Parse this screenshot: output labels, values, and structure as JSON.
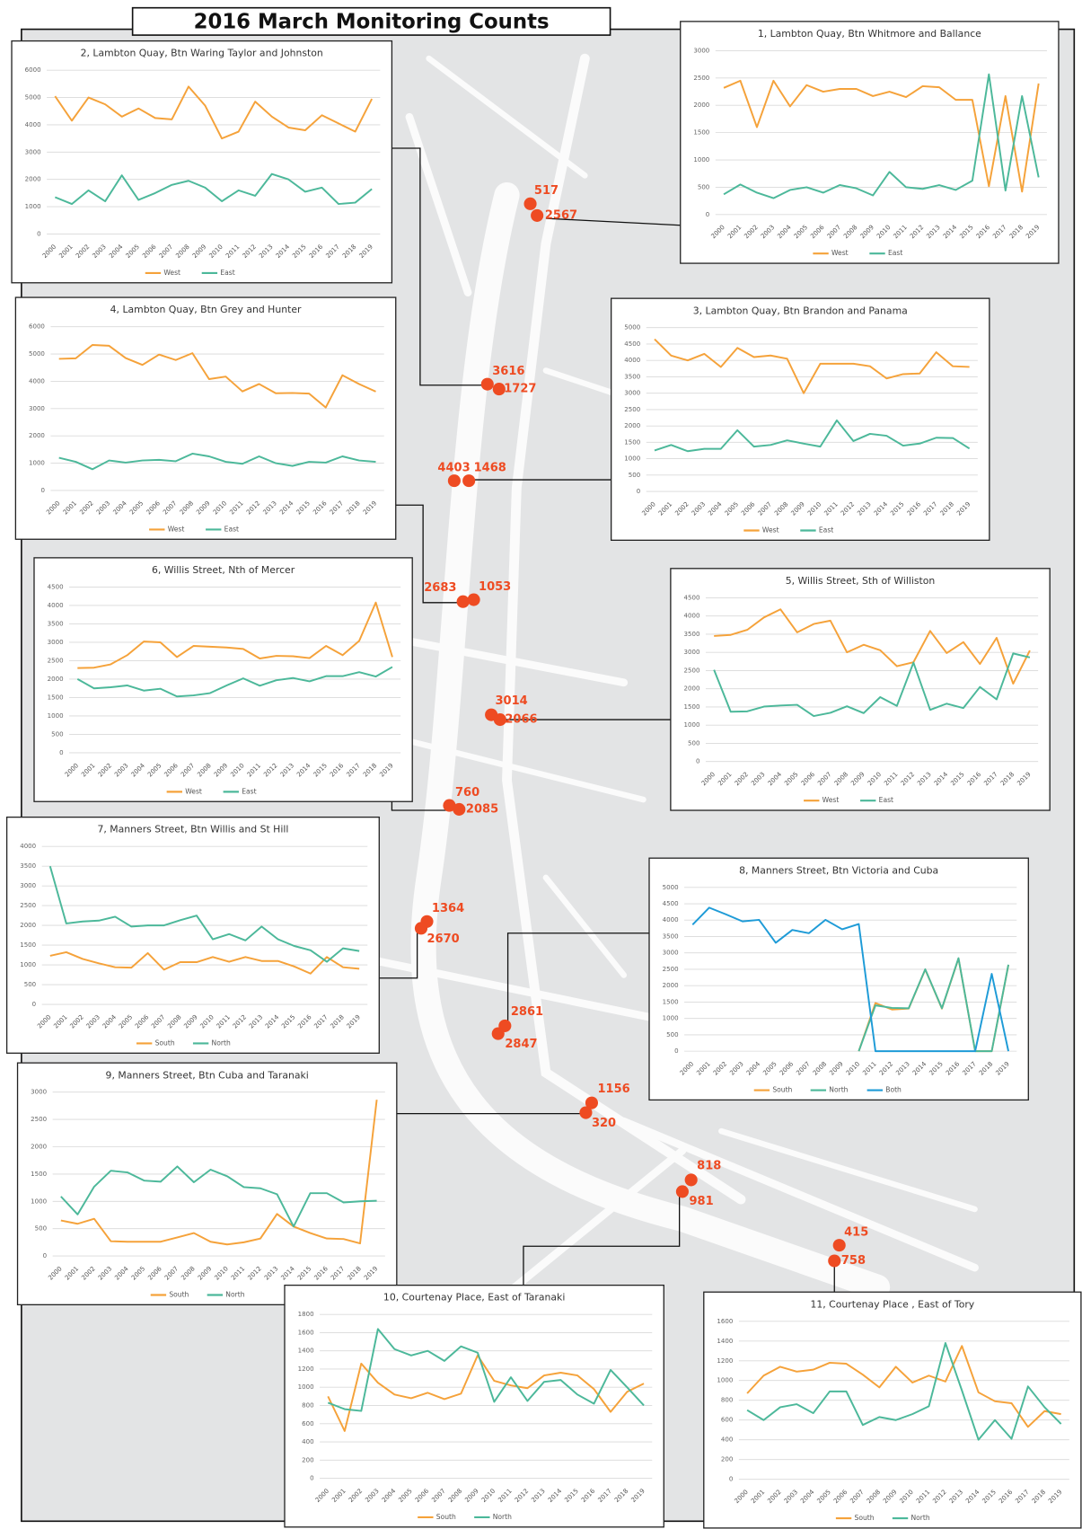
{
  "title": "2016 March Monitoring Counts",
  "markers": [
    {
      "counts": [
        517,
        2567
      ]
    },
    {
      "counts": [
        3616,
        1727
      ]
    },
    {
      "counts": [
        4403,
        1468
      ]
    },
    {
      "counts": [
        2683,
        1053
      ]
    },
    {
      "counts": [
        3014,
        2066
      ]
    },
    {
      "counts": [
        760,
        2085
      ]
    },
    {
      "counts": [
        1364,
        2670
      ]
    },
    {
      "counts": [
        2861,
        2847
      ]
    },
    {
      "counts": [
        1156,
        320
      ]
    },
    {
      "counts": [
        818,
        981
      ]
    },
    {
      "counts": [
        415,
        758
      ]
    }
  ],
  "chart_data": [
    {
      "type": "line",
      "title": "2, Lambton Quay, Btn Waring Taylor and Johnston",
      "categories": [
        "2000",
        "2001",
        "2002",
        "2003",
        "2004",
        "2005",
        "2006",
        "2007",
        "2008",
        "2009",
        "2010",
        "2011",
        "2012",
        "2013",
        "2014",
        "2015",
        "2016",
        "2017",
        "2018",
        "2019"
      ],
      "ylim": [
        0,
        6000
      ],
      "yticks": [
        0,
        1000,
        2000,
        3000,
        4000,
        5000,
        6000
      ],
      "grid": true,
      "series": [
        {
          "name": "West",
          "color": "#f5a23a",
          "values": [
            5050,
            4150,
            5000,
            4750,
            4300,
            4600,
            4250,
            4200,
            5400,
            4700,
            3500,
            3750,
            4850,
            4300,
            3900,
            3800,
            4350,
            4050,
            3750,
            4950
          ]
        },
        {
          "name": "East",
          "color": "#4cb89a",
          "values": [
            1350,
            1100,
            1600,
            1200,
            2150,
            1250,
            1500,
            1800,
            1950,
            1700,
            1200,
            1600,
            1400,
            2200,
            2000,
            1550,
            1700,
            1100,
            1150,
            1650
          ]
        }
      ]
    },
    {
      "type": "line",
      "title": "1, Lambton Quay, Btn Whitmore and Ballance",
      "categories": [
        "2000",
        "2001",
        "2002",
        "2003",
        "2004",
        "2005",
        "2006",
        "2007",
        "2008",
        "2009",
        "2010",
        "2011",
        "2012",
        "2013",
        "2014",
        "2015",
        "2016",
        "2017",
        "2018",
        "2019"
      ],
      "ylim": [
        0,
        3000
      ],
      "yticks": [
        0,
        500,
        1000,
        1500,
        2000,
        2500,
        3000
      ],
      "grid": true,
      "series": [
        {
          "name": "West",
          "color": "#f5a23a",
          "values": [
            2320,
            2450,
            1600,
            2450,
            1980,
            2370,
            2250,
            2300,
            2300,
            2170,
            2250,
            2150,
            2350,
            2330,
            2100,
            2100,
            517,
            2170,
            420,
            2400
          ]
        },
        {
          "name": "East",
          "color": "#4cb89a",
          "values": [
            370,
            550,
            400,
            300,
            450,
            500,
            400,
            540,
            480,
            350,
            780,
            500,
            470,
            540,
            450,
            620,
            2567,
            440,
            2170,
            680
          ]
        }
      ]
    },
    {
      "type": "line",
      "title": "4, Lambton Quay, Btn Grey and Hunter",
      "categories": [
        "2000",
        "2001",
        "2002",
        "2003",
        "2004",
        "2005",
        "2006",
        "2007",
        "2008",
        "2009",
        "2010",
        "2011",
        "2012",
        "2013",
        "2014",
        "2015",
        "2016",
        "2017",
        "2018",
        "2019"
      ],
      "ylim": [
        0,
        6000
      ],
      "yticks": [
        0,
        1000,
        2000,
        3000,
        4000,
        5000,
        6000
      ],
      "grid": true,
      "series": [
        {
          "name": "West",
          "color": "#f5a23a",
          "values": [
            4820,
            4840,
            5330,
            5300,
            4850,
            4600,
            4980,
            4780,
            5030,
            4080,
            4170,
            3630,
            3900,
            3560,
            3570,
            3550,
            3040,
            4220,
            3900,
            3620
          ]
        },
        {
          "name": "East",
          "color": "#4cb89a",
          "values": [
            1200,
            1050,
            780,
            1100,
            1020,
            1100,
            1120,
            1070,
            1350,
            1250,
            1050,
            980,
            1250,
            1000,
            900,
            1050,
            1020,
            1250,
            1100,
            1050
          ]
        }
      ]
    },
    {
      "type": "line",
      "title": "3, Lambton Quay, Btn Brandon and Panama",
      "categories": [
        "2000",
        "2001",
        "2002",
        "2003",
        "2004",
        "2005",
        "2006",
        "2007",
        "2008",
        "2009",
        "2010",
        "2011",
        "2012",
        "2013",
        "2014",
        "2015",
        "2016",
        "2017",
        "2018",
        "2019"
      ],
      "ylim": [
        0,
        5000
      ],
      "yticks": [
        0,
        500,
        1000,
        1500,
        2000,
        2500,
        3000,
        3500,
        4000,
        4500,
        5000
      ],
      "grid": true,
      "series": [
        {
          "name": "West",
          "color": "#f5a23a",
          "values": [
            4650,
            4150,
            4000,
            4200,
            3800,
            4380,
            4100,
            4150,
            4050,
            3000,
            3900,
            3900,
            3900,
            3820,
            3450,
            3580,
            3600,
            4250,
            3820,
            3800
          ]
        },
        {
          "name": "East",
          "color": "#4cb89a",
          "values": [
            1250,
            1420,
            1230,
            1300,
            1300,
            1870,
            1370,
            1420,
            1560,
            1460,
            1370,
            2170,
            1540,
            1760,
            1700,
            1400,
            1460,
            1640,
            1630,
            1310
          ]
        }
      ]
    },
    {
      "type": "line",
      "title": "6, Willis Street, Nth of Mercer",
      "categories": [
        "2000",
        "2001",
        "2002",
        "2003",
        "2004",
        "2005",
        "2006",
        "2007",
        "2008",
        "2009",
        "2010",
        "2011",
        "2012",
        "2013",
        "2014",
        "2015",
        "2016",
        "2017",
        "2018",
        "2019"
      ],
      "ylim": [
        0,
        4500
      ],
      "yticks": [
        0,
        500,
        1000,
        1500,
        2000,
        2500,
        3000,
        3500,
        4000,
        4500
      ],
      "grid": true,
      "series": [
        {
          "name": "West",
          "color": "#f5a23a",
          "values": [
            2300,
            2310,
            2400,
            2650,
            3020,
            3000,
            2600,
            2900,
            2880,
            2860,
            2820,
            2560,
            2630,
            2620,
            2570,
            2900,
            2650,
            3040,
            4080,
            2600
          ]
        },
        {
          "name": "East",
          "color": "#4cb89a",
          "values": [
            2000,
            1750,
            1780,
            1830,
            1690,
            1740,
            1530,
            1560,
            1620,
            1830,
            2020,
            1820,
            1970,
            2030,
            1940,
            2080,
            2080,
            2190,
            2070,
            2330
          ]
        }
      ]
    },
    {
      "type": "line",
      "title": "5, Willis Street, Sth of Williston",
      "categories": [
        "2000",
        "2001",
        "2002",
        "2003",
        "2004",
        "2005",
        "2006",
        "2007",
        "2008",
        "2009",
        "2010",
        "2011",
        "2012",
        "2013",
        "2014",
        "2015",
        "2016",
        "2017",
        "2018",
        "2019"
      ],
      "ylim": [
        0,
        4500
      ],
      "yticks": [
        0,
        500,
        1000,
        1500,
        2000,
        2500,
        3000,
        3500,
        4000,
        4500
      ],
      "grid": true,
      "series": [
        {
          "name": "West",
          "color": "#f5a23a",
          "values": [
            3450,
            3480,
            3620,
            3960,
            4180,
            3550,
            3780,
            3870,
            3000,
            3210,
            3060,
            2620,
            2730,
            3590,
            2980,
            3280,
            2680,
            3400,
            2140,
            3050
          ]
        },
        {
          "name": "East",
          "color": "#4cb89a",
          "values": [
            2520,
            1370,
            1380,
            1510,
            1540,
            1560,
            1250,
            1340,
            1520,
            1330,
            1770,
            1530,
            2720,
            1420,
            1590,
            1470,
            2050,
            1710,
            2970,
            2860
          ]
        }
      ]
    },
    {
      "type": "line",
      "title": "7, Manners Street, Btn Willis and St Hill",
      "categories": [
        "2000",
        "2001",
        "2002",
        "2003",
        "2004",
        "2005",
        "2006",
        "2007",
        "2008",
        "2009",
        "2010",
        "2011",
        "2012",
        "2013",
        "2014",
        "2015",
        "2016",
        "2017",
        "2018",
        "2019"
      ],
      "ylim": [
        0,
        4000
      ],
      "yticks": [
        0,
        500,
        1000,
        1500,
        2000,
        2500,
        3000,
        3500,
        4000
      ],
      "grid": true,
      "series": [
        {
          "name": "South",
          "color": "#f5a23a",
          "values": [
            1230,
            1320,
            1150,
            1040,
            940,
            930,
            1300,
            880,
            1070,
            1070,
            1200,
            1080,
            1200,
            1100,
            1100,
            960,
            780,
            1200,
            940,
            900
          ]
        },
        {
          "name": "North",
          "color": "#4cb89a",
          "values": [
            3500,
            2050,
            2100,
            2120,
            2220,
            1970,
            2000,
            2000,
            2130,
            2250,
            1650,
            1780,
            1620,
            1970,
            1650,
            1480,
            1370,
            1080,
            1420,
            1350
          ]
        }
      ]
    },
    {
      "type": "line",
      "title": "8, Manners Street, Btn Victoria and Cuba",
      "categories": [
        "2000",
        "2001",
        "2002",
        "2003",
        "2004",
        "2005",
        "2006",
        "2007",
        "2008",
        "2009",
        "2010",
        "2011",
        "2012",
        "2013",
        "2014",
        "2015",
        "2016",
        "2017",
        "2018",
        "2019"
      ],
      "ylim": [
        0,
        5000
      ],
      "yticks": [
        0,
        500,
        1000,
        1500,
        2000,
        2500,
        3000,
        3500,
        4000,
        4500,
        5000
      ],
      "grid": true,
      "series": [
        {
          "name": "South",
          "color": "#f5a23a",
          "values": [
            null,
            null,
            null,
            null,
            null,
            null,
            null,
            null,
            null,
            null,
            0,
            1470,
            1270,
            1300,
            2490,
            1300,
            2830,
            0,
            0,
            2630
          ]
        },
        {
          "name": "North",
          "color": "#4cb89a",
          "values": [
            null,
            null,
            null,
            null,
            null,
            null,
            null,
            null,
            null,
            null,
            0,
            1400,
            1320,
            1310,
            2500,
            1310,
            2840,
            0,
            0,
            2640
          ]
        },
        {
          "name": "Both",
          "color": "#1e9bd7",
          "values": [
            3860,
            4380,
            4180,
            3960,
            4010,
            3310,
            3700,
            3600,
            4010,
            3720,
            3880,
            0,
            0,
            0,
            0,
            0,
            0,
            0,
            2360,
            0
          ]
        }
      ]
    },
    {
      "type": "line",
      "title": "9, Manners Street, Btn Cuba and Taranaki",
      "categories": [
        "2000",
        "2001",
        "2002",
        "2003",
        "2004",
        "2005",
        "2006",
        "2007",
        "2008",
        "2009",
        "2010",
        "2011",
        "2012",
        "2013",
        "2014",
        "2015",
        "2016",
        "2017",
        "2018",
        "2019"
      ],
      "ylim": [
        0,
        3000
      ],
      "yticks": [
        0,
        500,
        1000,
        1500,
        2000,
        2500,
        3000
      ],
      "grid": true,
      "series": [
        {
          "name": "South",
          "color": "#f5a23a",
          "values": [
            650,
            590,
            680,
            270,
            260,
            260,
            260,
            340,
            420,
            260,
            210,
            250,
            320,
            770,
            540,
            420,
            320,
            310,
            230,
            2860
          ]
        },
        {
          "name": "North",
          "color": "#4cb89a",
          "values": [
            1090,
            760,
            1270,
            1560,
            1530,
            1380,
            1360,
            1640,
            1350,
            1580,
            1460,
            1260,
            1240,
            1130,
            540,
            1150,
            1150,
            980,
            1000,
            1010
          ]
        }
      ]
    },
    {
      "type": "line",
      "title": "10, Courtenay Place, East of Taranaki",
      "categories": [
        "2000",
        "2001",
        "2002",
        "2003",
        "2004",
        "2005",
        "2006",
        "2007",
        "2008",
        "2009",
        "2010",
        "2011",
        "2012",
        "2013",
        "2014",
        "2015",
        "2016",
        "2017",
        "2018",
        "2019"
      ],
      "ylim": [
        0,
        1800
      ],
      "yticks": [
        0,
        200,
        400,
        600,
        800,
        1000,
        1200,
        1400,
        1600,
        1800
      ],
      "grid": true,
      "series": [
        {
          "name": "South",
          "color": "#f5a23a",
          "values": [
            900,
            520,
            1260,
            1050,
            920,
            880,
            940,
            870,
            930,
            1350,
            1070,
            1020,
            990,
            1130,
            1160,
            1130,
            980,
            730,
            950,
            1040
          ]
        },
        {
          "name": "North",
          "color": "#4cb89a",
          "values": [
            830,
            760,
            740,
            1640,
            1420,
            1350,
            1400,
            1290,
            1450,
            1380,
            840,
            1110,
            850,
            1060,
            1080,
            920,
            820,
            1190,
            1000,
            800
          ]
        }
      ]
    },
    {
      "type": "line",
      "title": "11, Courtenay Place , East of Tory",
      "categories": [
        "2000",
        "2001",
        "2002",
        "2003",
        "2004",
        "2005",
        "2006",
        "2007",
        "2008",
        "2009",
        "2010",
        "2011",
        "2012",
        "2013",
        "2014",
        "2015",
        "2016",
        "2017",
        "2018",
        "2019"
      ],
      "ylim": [
        0,
        1600
      ],
      "yticks": [
        0,
        200,
        400,
        600,
        800,
        1000,
        1200,
        1400,
        1600
      ],
      "grid": true,
      "series": [
        {
          "name": "South",
          "color": "#f5a23a",
          "values": [
            870,
            1050,
            1140,
            1090,
            1110,
            1180,
            1170,
            1060,
            930,
            1140,
            980,
            1050,
            990,
            1350,
            880,
            790,
            770,
            530,
            690,
            660
          ]
        },
        {
          "name": "North",
          "color": "#4cb89a",
          "values": [
            700,
            600,
            730,
            760,
            670,
            890,
            890,
            550,
            630,
            600,
            660,
            740,
            1380,
            900,
            400,
            600,
            410,
            940,
            730,
            560
          ]
        }
      ]
    }
  ]
}
